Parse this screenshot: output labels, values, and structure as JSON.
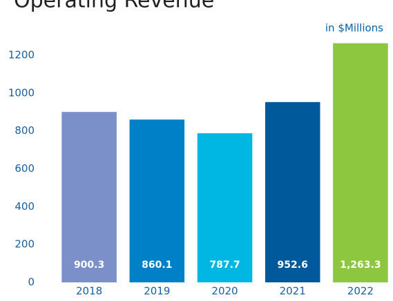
{
  "chart_data": {
    "type": "bar",
    "title": "Operating Revenue",
    "subtitle": "in $Millions",
    "categories": [
      "2018",
      "2019",
      "2020",
      "2021",
      "2022"
    ],
    "values": [
      900.3,
      860.1,
      787.7,
      952.6,
      1263.3
    ],
    "value_labels": [
      "900.3",
      "860.1",
      "787.7",
      "952.6",
      "1,263.3"
    ],
    "colors": [
      "#7b8fc8",
      "#0080c6",
      "#00b7e3",
      "#00599b",
      "#8dc63f"
    ],
    "ylim": [
      0,
      1200
    ],
    "yticks": [
      0,
      200,
      400,
      600,
      800,
      1000,
      1200
    ],
    "grid": false
  }
}
